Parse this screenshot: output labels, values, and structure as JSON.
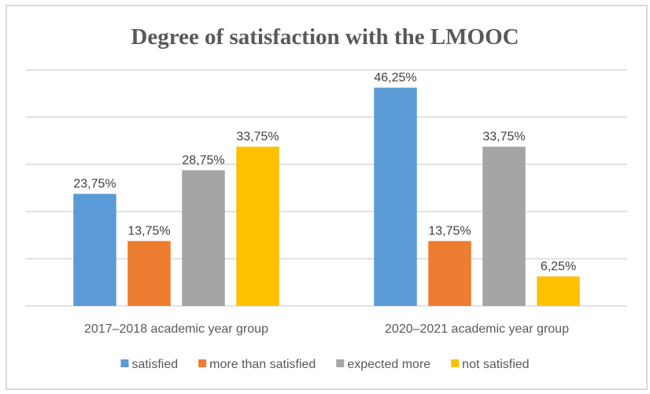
{
  "chart_data": {
    "type": "bar",
    "title": "Degree of satisfaction with the LMOOC",
    "xlabel": "",
    "ylabel": "",
    "ylim": [
      0,
      50
    ],
    "y_gridline_step": 10,
    "grid": true,
    "y_axis_labels_visible": false,
    "legend_position": "bottom",
    "categories": [
      "2017–2018 academic year group",
      "2020–2021 academic year group"
    ],
    "series": [
      {
        "name": "satisfied",
        "color": "#5b9bd5",
        "values": [
          23.75,
          46.25
        ],
        "labels": [
          "23,75%",
          "46,25%"
        ]
      },
      {
        "name": "more than satisfied",
        "color": "#ed7d31",
        "values": [
          13.75,
          13.75
        ],
        "labels": [
          "13,75%",
          "13,75%"
        ]
      },
      {
        "name": "expected more",
        "color": "#a5a5a5",
        "values": [
          28.75,
          33.75
        ],
        "labels": [
          "28,75%",
          "33,75%"
        ]
      },
      {
        "name": "not satisfied",
        "color": "#ffc000",
        "values": [
          33.75,
          6.25
        ],
        "labels": [
          "33,75%",
          "6,25%"
        ]
      }
    ]
  }
}
